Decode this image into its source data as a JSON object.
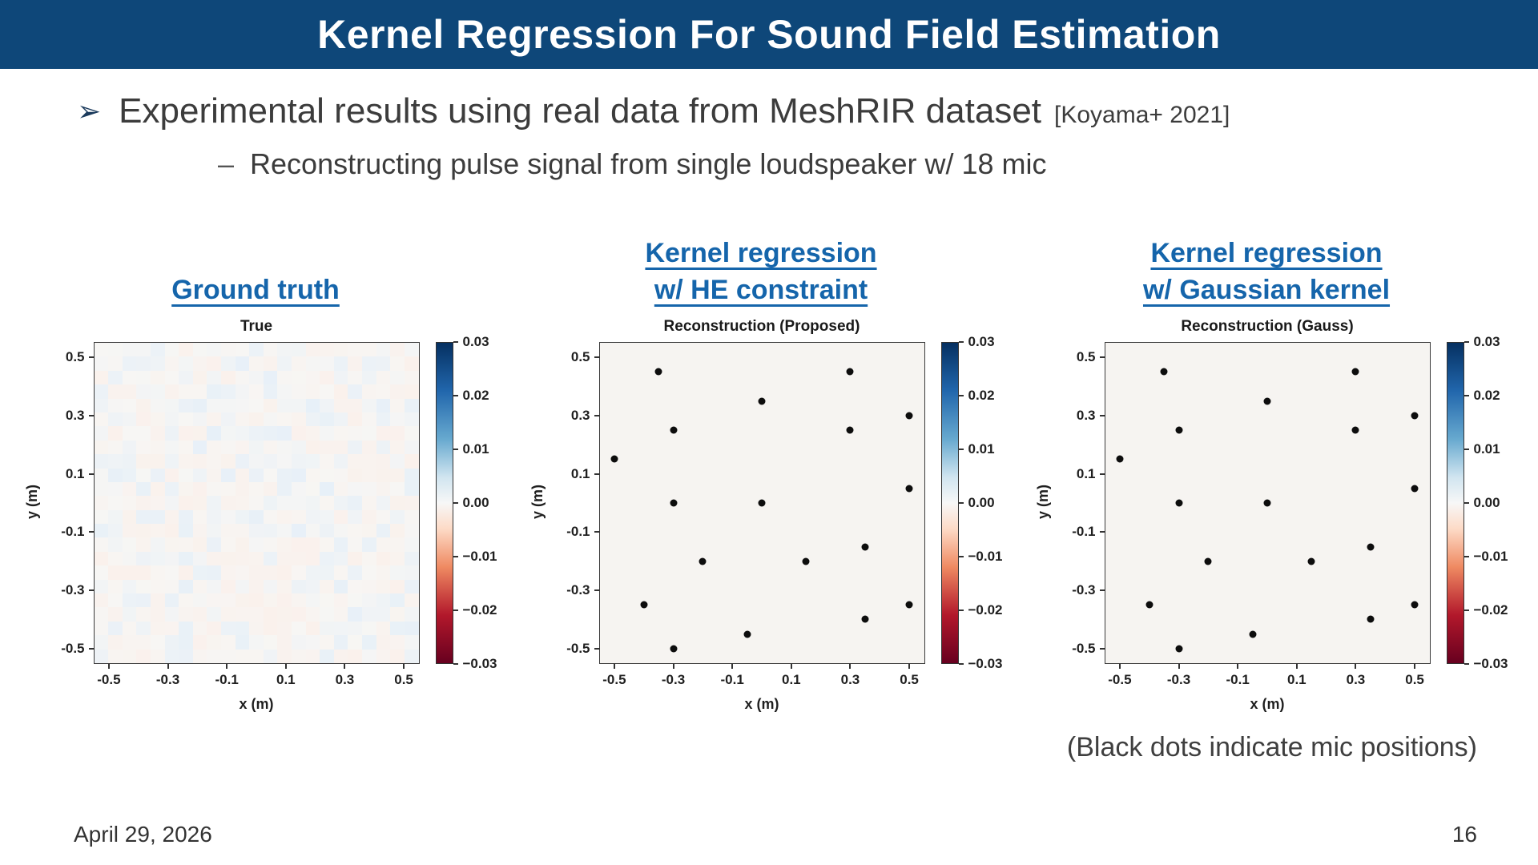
{
  "slide": {
    "header": {
      "title": "Kernel Regression For Sound Field Estimation"
    },
    "bullet": {
      "marker": "➢",
      "text": "Experimental results using real data from MeshRIR dataset",
      "citation": "[Koyama+ 2021]"
    },
    "sub_bullet": {
      "marker": "–",
      "text": "Reconstructing pulse signal from single loudspeaker w/ 18 mic"
    },
    "caption": "(Black dots indicate mic positions)",
    "footer": {
      "date": "April 29, 2026",
      "page": "16"
    }
  },
  "headings": [
    {
      "lines": [
        "Ground truth"
      ]
    },
    {
      "lines": [
        "Kernel regression",
        "w/ HE constraint"
      ]
    },
    {
      "lines": [
        "Kernel regression",
        "w/ Gaussian kernel"
      ]
    }
  ],
  "colors": {
    "header_bg": "#0e4779",
    "heading_blue": "#1565ab",
    "body_text": "#3c3c3c",
    "colormap_high": "#053061",
    "colormap_mid": "#f7f7f7",
    "colormap_low": "#67001f"
  },
  "chart_data": [
    {
      "type": "heatmap",
      "title": "True",
      "xlabel": "x (m)",
      "ylabel": "y (m)",
      "xlim": [
        -0.55,
        0.55
      ],
      "ylim": [
        -0.55,
        0.55
      ],
      "xticks": [
        -0.5,
        -0.3,
        -0.1,
        0.1,
        0.3,
        0.5
      ],
      "xtick_labels": [
        "-0.5",
        "-0.3",
        "-0.1",
        "0.1",
        "0.3",
        "0.5"
      ],
      "yticks": [
        0.5,
        0.3,
        0.1,
        -0.1,
        -0.3,
        -0.5
      ],
      "ytick_labels": [
        "0.5",
        "0.3",
        "0.1",
        "-0.1",
        "-0.3",
        "-0.5"
      ],
      "colorbar_ticks": [
        0.03,
        0.02,
        0.01,
        0,
        -0.01,
        -0.02,
        -0.03
      ],
      "colorbar_tick_labels": [
        "0.03",
        "0.02",
        "0.01",
        "0.00",
        "−0.01",
        "−0.02",
        "−0.03"
      ],
      "colormap": "RdBu (blue = positive, red = negative)",
      "value_range": [
        -0.03,
        0.03
      ],
      "description": "Measured ground-truth pressure field at snapshot; values near zero (faint mosaic noise)",
      "noise_seed": 11,
      "noise_grid": 23
    },
    {
      "type": "scatter",
      "title": "Reconstruction (Proposed)",
      "xlabel": "x (m)",
      "ylabel": "y (m)",
      "xlim": [
        -0.55,
        0.55
      ],
      "ylim": [
        -0.55,
        0.55
      ],
      "xticks": [
        -0.5,
        -0.3,
        -0.1,
        0.1,
        0.3,
        0.5
      ],
      "xtick_labels": [
        "-0.5",
        "-0.3",
        "-0.1",
        "0.1",
        "0.3",
        "0.5"
      ],
      "yticks": [
        0.5,
        0.3,
        0.1,
        -0.1,
        -0.3,
        -0.5
      ],
      "ytick_labels": [
        "0.5",
        "0.3",
        "0.1",
        "-0.1",
        "-0.3",
        "-0.5"
      ],
      "colorbar_ticks": [
        0.03,
        0.02,
        0.01,
        0,
        -0.01,
        -0.02,
        -0.03
      ],
      "colorbar_tick_labels": [
        "0.03",
        "0.02",
        "0.01",
        "0.00",
        "−0.01",
        "−0.02",
        "−0.03"
      ],
      "colormap": "RdBu (blue = positive, red = negative)",
      "value_range": [
        -0.03,
        0.03
      ],
      "description": "Reconstructed field with proposed HE-constrained kernel; black dots are 18 mic positions",
      "mic_positions": [
        [
          -0.35,
          0.45
        ],
        [
          0.3,
          0.45
        ],
        [
          0.0,
          0.35
        ],
        [
          0.5,
          0.3
        ],
        [
          -0.3,
          0.25
        ],
        [
          0.3,
          0.25
        ],
        [
          -0.5,
          0.15
        ],
        [
          0.5,
          0.05
        ],
        [
          -0.3,
          0.0
        ],
        [
          0.0,
          0.0
        ],
        [
          0.35,
          -0.15
        ],
        [
          -0.2,
          -0.2
        ],
        [
          0.15,
          -0.2
        ],
        [
          -0.4,
          -0.35
        ],
        [
          0.5,
          -0.35
        ],
        [
          0.35,
          -0.4
        ],
        [
          -0.05,
          -0.45
        ],
        [
          -0.3,
          -0.5
        ]
      ]
    },
    {
      "type": "scatter",
      "title": "Reconstruction (Gauss)",
      "xlabel": "x (m)",
      "ylabel": "y (m)",
      "xlim": [
        -0.55,
        0.55
      ],
      "ylim": [
        -0.55,
        0.55
      ],
      "xticks": [
        -0.5,
        -0.3,
        -0.1,
        0.1,
        0.3,
        0.5
      ],
      "xtick_labels": [
        "-0.5",
        "-0.3",
        "-0.1",
        "0.1",
        "0.3",
        "0.5"
      ],
      "yticks": [
        0.5,
        0.3,
        0.1,
        -0.1,
        -0.3,
        -0.5
      ],
      "ytick_labels": [
        "0.5",
        "0.3",
        "0.1",
        "-0.1",
        "-0.3",
        "-0.5"
      ],
      "colorbar_ticks": [
        0.03,
        0.02,
        0.01,
        0,
        -0.01,
        -0.02,
        -0.03
      ],
      "colorbar_tick_labels": [
        "0.03",
        "0.02",
        "0.01",
        "0.00",
        "−0.01",
        "−0.02",
        "−0.03"
      ],
      "colormap": "RdBu (blue = positive, red = negative)",
      "value_range": [
        -0.03,
        0.03
      ],
      "description": "Reconstructed field with Gaussian kernel; black dots are 18 mic positions",
      "mic_positions": [
        [
          -0.35,
          0.45
        ],
        [
          0.3,
          0.45
        ],
        [
          0.0,
          0.35
        ],
        [
          0.5,
          0.3
        ],
        [
          -0.3,
          0.25
        ],
        [
          0.3,
          0.25
        ],
        [
          -0.5,
          0.15
        ],
        [
          0.5,
          0.05
        ],
        [
          -0.3,
          0.0
        ],
        [
          0.0,
          0.0
        ],
        [
          0.35,
          -0.15
        ],
        [
          -0.2,
          -0.2
        ],
        [
          0.15,
          -0.2
        ],
        [
          -0.4,
          -0.35
        ],
        [
          0.5,
          -0.35
        ],
        [
          0.35,
          -0.4
        ],
        [
          -0.05,
          -0.45
        ],
        [
          -0.3,
          -0.5
        ]
      ]
    }
  ]
}
